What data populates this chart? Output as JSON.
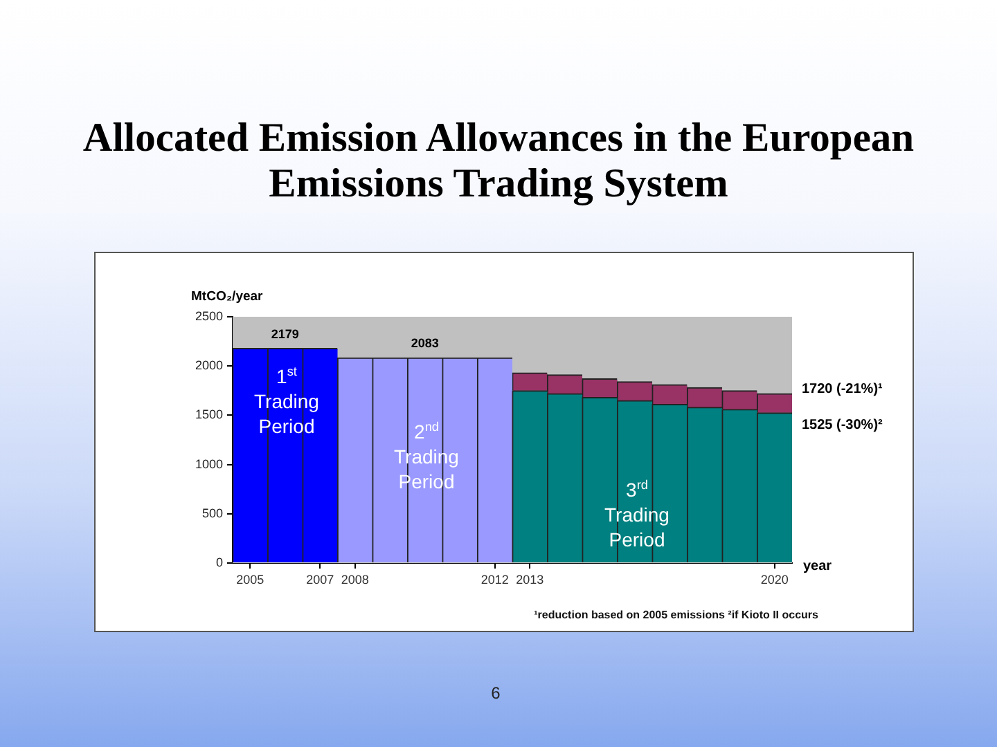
{
  "chart_data": {
    "type": "bar",
    "title": "Allocated Emission Allowances in the European Emissions Trading System",
    "ylabel": "MtCO₂/year",
    "xlabel": "year",
    "x": [
      2005,
      2006,
      2007,
      2008,
      2009,
      2010,
      2011,
      2012,
      2013,
      2014,
      2015,
      2016,
      2017,
      2018,
      2019,
      2020
    ],
    "stacked": true,
    "series": [
      {
        "colors": [
          "#0000ff",
          "#0000ff",
          "#0000ff",
          "#9999ff",
          "#9999ff",
          "#9999ff",
          "#9999ff",
          "#9999ff",
          "#008080",
          "#008080",
          "#008080",
          "#008080",
          "#008080",
          "#008080",
          "#008080",
          "#008080"
        ],
        "values": [
          2179,
          2179,
          2179,
          2083,
          2083,
          2083,
          2083,
          2083,
          1750,
          1720,
          1680,
          1650,
          1610,
          1580,
          1560,
          1525
        ],
        "value_labels": [
          null,
          "2179",
          null,
          null,
          null,
          "2083",
          null,
          null,
          null,
          null,
          null,
          null,
          null,
          null,
          null,
          null
        ]
      },
      {
        "color": "#993366",
        "values": [
          null,
          null,
          null,
          null,
          null,
          null,
          null,
          null,
          180,
          190,
          190,
          190,
          200,
          200,
          190,
          195
        ]
      }
    ],
    "xlim": [
      2004.5,
      2020.5
    ],
    "xticks": [
      2005,
      2007,
      2008,
      2012,
      2013,
      2020
    ],
    "ylim": [
      0,
      2500
    ],
    "yticks": [
      0,
      500,
      1000,
      1500,
      2000,
      2500
    ],
    "annotations": [
      "1$^{st}$ Trading Period",
      "2$^{nd}$ Trading Period",
      "3$^{rd}$ Trading Period",
      "1720 (-21%)¹",
      "1525 (-30%)²",
      "¹reduction based on 2005 emissions ²if Kioto II occurs",
      "6"
    ]
  }
}
